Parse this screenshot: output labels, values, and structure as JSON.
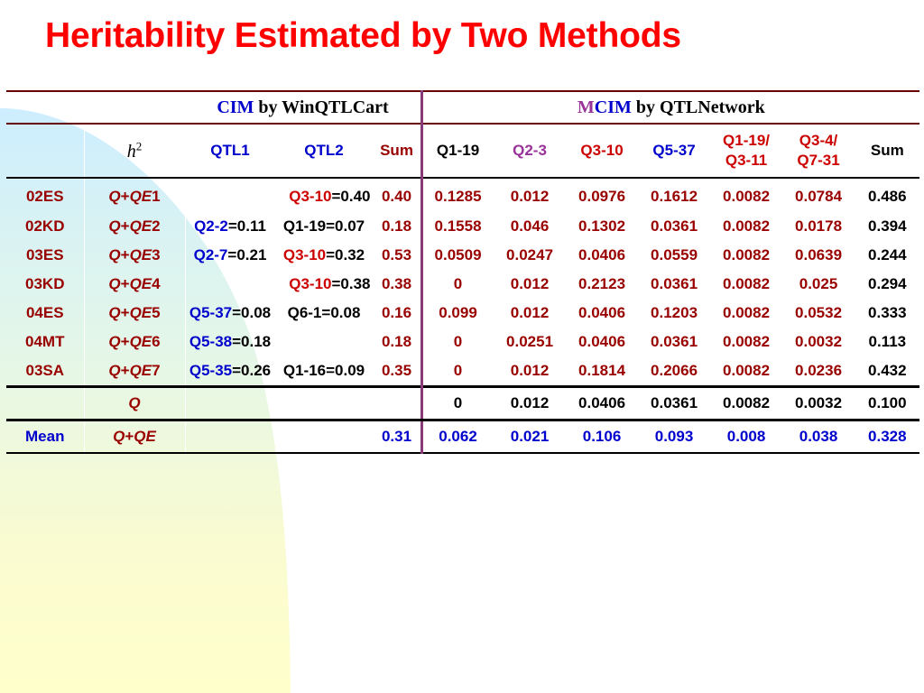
{
  "title": "Heritability Estimated by Two Methods",
  "colors": {
    "title": "#ff0000",
    "background_blob_blue": "#cceeff",
    "background_blob_yellow": "#ffffcc"
  },
  "header": {
    "cim_prefix": "CIM",
    "cim_suffix": " by WinQTLCart",
    "mcim_m": "M",
    "mcim_cim": "CIM",
    "mcim_suffix": " by QTLNetwork",
    "h2_symbol": "h",
    "h2_sup": "2",
    "qtl1": "QTL1",
    "qtl2": "QTL2",
    "sum_cim": "Sum",
    "q1_19": "Q1-19",
    "q2_3": "Q2-3",
    "q3_10": "Q3-10",
    "q5_37": "Q5-37",
    "q1_19_q3_11_line1": "Q1-19/",
    "q1_19_q3_11_line2": "Q3-11",
    "q3_4_q7_31_line1": "Q3-4/",
    "q3_4_q7_31_line2": "Q7-31",
    "sum_mcim": "Sum"
  },
  "rows": [
    {
      "env": "02ES",
      "model_a": "Q",
      "model_plus": "+",
      "model_b": "QE",
      "model_n": "1",
      "qtl1_name": "",
      "qtl1_val": "",
      "qtl2_name": "Q3-10",
      "qtl2_val": "=0.40",
      "sum": "0.40",
      "m": [
        "0.1285",
        "0.012",
        "0.0976",
        "0.1612",
        "0.0082",
        "0.0784",
        "0.486"
      ]
    },
    {
      "env": "02KD",
      "model_a": "Q",
      "model_plus": "+",
      "model_b": "QE",
      "model_n": "2",
      "qtl1_name": "Q2-2",
      "qtl1_val": "=0.11",
      "qtl2_name": "",
      "qtl2_val": "Q1-19=0.07",
      "sum": "0.18",
      "m": [
        "0.1558",
        "0.046",
        "0.1302",
        "0.0361",
        "0.0082",
        "0.0178",
        "0.394"
      ]
    },
    {
      "env": "03ES",
      "model_a": "Q",
      "model_plus": "+",
      "model_b": "QE",
      "model_n": "3",
      "qtl1_name": "Q2-7",
      "qtl1_val": "=0.21",
      "qtl2_name": "Q3-10",
      "qtl2_val": "=0.32",
      "sum": "0.53",
      "m": [
        "0.0509",
        "0.0247",
        "0.0406",
        "0.0559",
        "0.0082",
        "0.0639",
        "0.244"
      ]
    },
    {
      "env": "03KD",
      "model_a": "Q",
      "model_plus": "+",
      "model_b": "QE",
      "model_n": "4",
      "qtl1_name": "",
      "qtl1_val": "",
      "qtl2_name": "Q3-10",
      "qtl2_val": "=0.38",
      "sum": "0.38",
      "m": [
        "0",
        "0.012",
        "0.2123",
        "0.0361",
        "0.0082",
        "0.025",
        "0.294"
      ]
    },
    {
      "env": "04ES",
      "model_a": "Q",
      "model_plus": "+",
      "model_b": "QE",
      "model_n": "5",
      "qtl1_name": "Q5-37",
      "qtl1_val": "=0.08",
      "qtl2_name": "",
      "qtl2_val": "Q6-1=0.08",
      "sum": "0.16",
      "m": [
        "0.099",
        "0.012",
        "0.0406",
        "0.1203",
        "0.0082",
        "0.0532",
        "0.333"
      ]
    },
    {
      "env": "04MT",
      "model_a": "Q",
      "model_plus": "+",
      "model_b": "QE",
      "model_n": "6",
      "qtl1_name": "Q5-38",
      "qtl1_val": "=0.18",
      "qtl2_name": "",
      "qtl2_val": "",
      "sum": "0.18",
      "m": [
        "0",
        "0.0251",
        "0.0406",
        "0.0361",
        "0.0082",
        "0.0032",
        "0.113"
      ]
    },
    {
      "env": "03SA",
      "model_a": "Q",
      "model_plus": "+",
      "model_b": "QE",
      "model_n": "7",
      "qtl1_name": "Q5-35",
      "qtl1_val": "=0.26",
      "qtl2_name": "",
      "qtl2_val": "Q1-16=0.09",
      "sum": "0.35",
      "m": [
        "0",
        "0.012",
        "0.1814",
        "0.2066",
        "0.0082",
        "0.0236",
        "0.432"
      ]
    }
  ],
  "q_row": {
    "label": "Q",
    "m": [
      "0",
      "0.012",
      "0.0406",
      "0.0361",
      "0.0082",
      "0.0032",
      "0.100"
    ]
  },
  "mean_row": {
    "label": "Mean",
    "model_a": "Q",
    "model_plus": "+",
    "model_b": "QE",
    "sum": "0.31",
    "m": [
      "0.062",
      "0.021",
      "0.106",
      "0.093",
      "0.008",
      "0.038",
      "0.328"
    ]
  }
}
